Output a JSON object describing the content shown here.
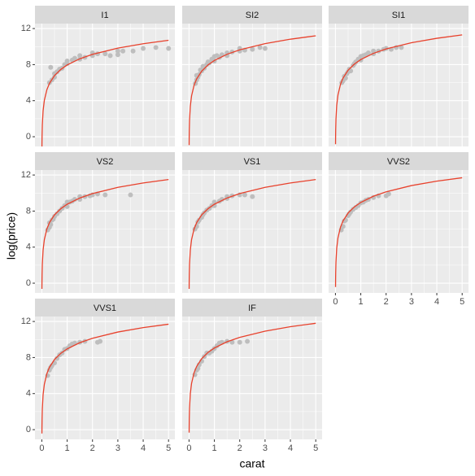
{
  "chart_data": {
    "type": "facet-scatter-fit",
    "x_label": "carat",
    "y_label": "log(price)",
    "xlim": [
      -0.27,
      5.25
    ],
    "ylim": [
      -1.08,
      12.55
    ],
    "xticks": [
      0,
      1,
      2,
      3,
      4,
      5
    ],
    "yticks": [
      0,
      4,
      8,
      12
    ],
    "grid": true,
    "point_color": "#bebebe",
    "line_color": "#e8412c",
    "fit_x": [
      0.004,
      0.006,
      0.01,
      0.02,
      0.05,
      0.1,
      0.2,
      0.3,
      0.5,
      0.75,
      1,
      1.5,
      2,
      3,
      4,
      5
    ],
    "panels": [
      {
        "title": "I1",
        "x": [
          0.3,
          0.35,
          0.4,
          0.5,
          0.5,
          0.6,
          0.7,
          0.8,
          0.9,
          1.0,
          1.0,
          1.2,
          1.3,
          1.5,
          1.5,
          1.7,
          2.0,
          2.0,
          2.2,
          2.5,
          2.7,
          3.0,
          3.0,
          3.2,
          3.6,
          4.0,
          4.5,
          5.0
        ],
        "y": [
          6.0,
          7.7,
          6.3,
          6.6,
          7.0,
          7.2,
          7.5,
          7.6,
          8.0,
          8.1,
          8.4,
          8.5,
          8.7,
          8.6,
          9.0,
          8.8,
          9.0,
          9.3,
          9.2,
          9.2,
          9.0,
          9.5,
          9.1,
          9.5,
          9.5,
          9.8,
          9.9,
          9.8
        ],
        "fit_y": [
          -1.43,
          -0.74,
          0.13,
          1.31,
          2.87,
          4.04,
          5.22,
          5.91,
          6.78,
          7.47,
          7.96,
          8.65,
          9.14,
          9.83,
          10.32,
          10.7
        ]
      },
      {
        "title": "SI2",
        "x": [
          0.25,
          0.3,
          0.3,
          0.35,
          0.4,
          0.45,
          0.5,
          0.55,
          0.6,
          0.7,
          0.75,
          0.8,
          0.9,
          1.0,
          1.0,
          1.1,
          1.2,
          1.3,
          1.5,
          1.5,
          1.7,
          2.0,
          2.0,
          2.2,
          2.5,
          2.8,
          3.0
        ],
        "y": [
          5.9,
          6.3,
          6.8,
          6.6,
          6.9,
          7.4,
          7.3,
          7.8,
          7.6,
          8.0,
          8.3,
          8.2,
          8.6,
          8.4,
          8.9,
          9.0,
          8.8,
          9.1,
          9.3,
          9.0,
          9.4,
          9.5,
          9.8,
          9.6,
          9.7,
          9.9,
          9.8
        ],
        "fit_y": [
          -0.93,
          -0.24,
          0.63,
          1.81,
          3.37,
          4.54,
          5.72,
          6.41,
          7.28,
          7.97,
          8.46,
          9.15,
          9.64,
          10.33,
          10.82,
          11.2
        ]
      },
      {
        "title": "SI1",
        "x": [
          0.25,
          0.3,
          0.35,
          0.4,
          0.45,
          0.5,
          0.55,
          0.6,
          0.7,
          0.75,
          0.8,
          0.9,
          1.0,
          1.0,
          1.1,
          1.2,
          1.3,
          1.5,
          1.5,
          1.7,
          1.9,
          2.0,
          2.2,
          2.4,
          2.6
        ],
        "y": [
          6.0,
          6.2,
          6.7,
          6.5,
          7.0,
          7.2,
          7.5,
          7.3,
          7.9,
          8.1,
          8.3,
          8.6,
          8.5,
          8.9,
          9.0,
          9.1,
          9.3,
          9.2,
          9.5,
          9.5,
          9.7,
          9.8,
          9.7,
          9.9,
          9.9
        ],
        "fit_y": [
          -0.83,
          -0.14,
          0.73,
          1.91,
          3.47,
          4.64,
          5.82,
          6.51,
          7.38,
          8.07,
          8.56,
          9.25,
          9.74,
          10.43,
          10.92,
          11.3
        ]
      },
      {
        "title": "VS2",
        "x": [
          0.23,
          0.3,
          0.3,
          0.35,
          0.4,
          0.45,
          0.5,
          0.6,
          0.7,
          0.8,
          0.9,
          1.0,
          1.0,
          1.1,
          1.2,
          1.3,
          1.5,
          1.5,
          1.7,
          1.9,
          2.0,
          2.2,
          2.5,
          3.5
        ],
        "y": [
          5.9,
          6.2,
          6.7,
          6.5,
          7.0,
          7.1,
          7.4,
          7.7,
          8.0,
          8.3,
          8.6,
          8.5,
          9.0,
          9.0,
          9.1,
          9.3,
          9.3,
          9.6,
          9.6,
          9.7,
          9.8,
          9.9,
          9.8,
          9.8
        ],
        "fit_y": [
          -0.63,
          0.06,
          0.93,
          2.11,
          3.67,
          4.84,
          6.02,
          6.71,
          7.58,
          8.27,
          8.76,
          9.45,
          9.94,
          10.63,
          11.12,
          11.5
        ]
      },
      {
        "title": "VS1",
        "x": [
          0.23,
          0.3,
          0.35,
          0.4,
          0.5,
          0.55,
          0.6,
          0.7,
          0.8,
          0.9,
          1.0,
          1.0,
          1.2,
          1.3,
          1.5,
          1.5,
          1.7,
          2.0,
          2.2,
          2.5
        ],
        "y": [
          6.0,
          6.3,
          6.8,
          7.0,
          7.3,
          7.6,
          7.8,
          8.1,
          8.3,
          8.6,
          8.6,
          9.0,
          9.1,
          9.3,
          9.4,
          9.6,
          9.7,
          9.8,
          9.8,
          9.6
        ],
        "fit_y": [
          -0.63,
          0.06,
          0.93,
          2.11,
          3.67,
          4.84,
          6.02,
          6.71,
          7.58,
          8.27,
          8.76,
          9.45,
          9.94,
          10.63,
          11.12,
          11.5
        ]
      },
      {
        "title": "VVS2",
        "x": [
          0.23,
          0.3,
          0.35,
          0.4,
          0.5,
          0.55,
          0.6,
          0.7,
          0.8,
          0.9,
          1.0,
          1.1,
          1.2,
          1.3,
          1.5,
          1.7,
          2.0,
          2.1
        ],
        "y": [
          5.9,
          6.3,
          6.9,
          7.0,
          7.5,
          7.7,
          7.9,
          8.2,
          8.4,
          8.6,
          8.9,
          9.0,
          9.2,
          9.3,
          9.5,
          9.7,
          9.7,
          9.9
        ],
        "fit_y": [
          -0.43,
          0.26,
          1.13,
          2.31,
          3.87,
          5.04,
          6.22,
          6.91,
          7.78,
          8.47,
          8.96,
          9.65,
          10.14,
          10.83,
          11.32,
          11.7
        ]
      },
      {
        "title": "VVS1",
        "x": [
          0.23,
          0.3,
          0.35,
          0.4,
          0.5,
          0.6,
          0.7,
          0.8,
          0.9,
          1.0,
          1.1,
          1.2,
          1.3,
          1.5,
          1.7,
          2.2,
          2.3
        ],
        "y": [
          6.0,
          6.6,
          6.9,
          7.1,
          7.4,
          7.9,
          8.3,
          8.5,
          8.9,
          9.0,
          9.3,
          9.5,
          9.6,
          9.7,
          9.8,
          9.7,
          9.8
        ],
        "fit_y": [
          -0.43,
          0.26,
          1.13,
          2.31,
          3.87,
          5.04,
          6.22,
          6.91,
          7.78,
          8.47,
          8.96,
          9.65,
          10.14,
          10.83,
          11.32,
          11.7
        ]
      },
      {
        "title": "IF",
        "x": [
          0.23,
          0.3,
          0.35,
          0.4,
          0.5,
          0.6,
          0.7,
          0.8,
          0.9,
          1.0,
          1.1,
          1.2,
          1.3,
          1.5,
          1.7,
          2.0,
          2.3
        ],
        "y": [
          6.1,
          6.6,
          6.8,
          7.2,
          7.6,
          8.1,
          8.5,
          8.5,
          8.7,
          9.0,
          9.3,
          9.6,
          9.7,
          9.8,
          9.7,
          9.7,
          9.8
        ],
        "fit_y": [
          -0.33,
          0.36,
          1.23,
          2.41,
          3.97,
          5.14,
          6.32,
          7.01,
          7.88,
          8.57,
          9.06,
          9.75,
          10.24,
          10.93,
          11.42,
          11.8
        ]
      }
    ]
  }
}
